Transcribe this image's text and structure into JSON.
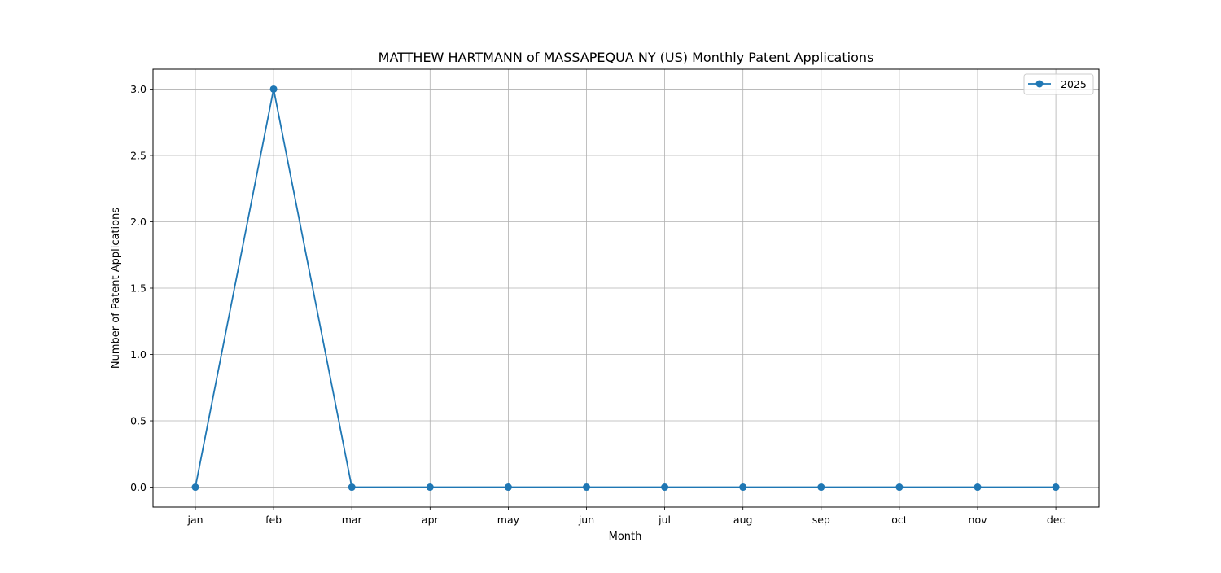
{
  "chart_data": {
    "type": "line",
    "title": "MATTHEW HARTMANN of MASSAPEQUA NY (US) Monthly Patent Applications",
    "xlabel": "Month",
    "ylabel": "Number of Patent Applications",
    "categories": [
      "jan",
      "feb",
      "mar",
      "apr",
      "may",
      "jun",
      "jul",
      "aug",
      "sep",
      "oct",
      "nov",
      "dec"
    ],
    "series": [
      {
        "name": "2025",
        "values": [
          0,
          3,
          0,
          0,
          0,
          0,
          0,
          0,
          0,
          0,
          0,
          0
        ],
        "color": "#1f77b4",
        "marker": "circle"
      }
    ],
    "yticks": [
      "0.0",
      "0.5",
      "1.0",
      "1.5",
      "2.0",
      "2.5",
      "3.0"
    ],
    "ylim": [
      -0.15,
      3.15
    ],
    "grid": true,
    "legend_position": "top-right"
  },
  "colors": {
    "series": "#1f77b4",
    "grid": "#b0b0b0",
    "axes": "#000000",
    "background": "#ffffff"
  }
}
